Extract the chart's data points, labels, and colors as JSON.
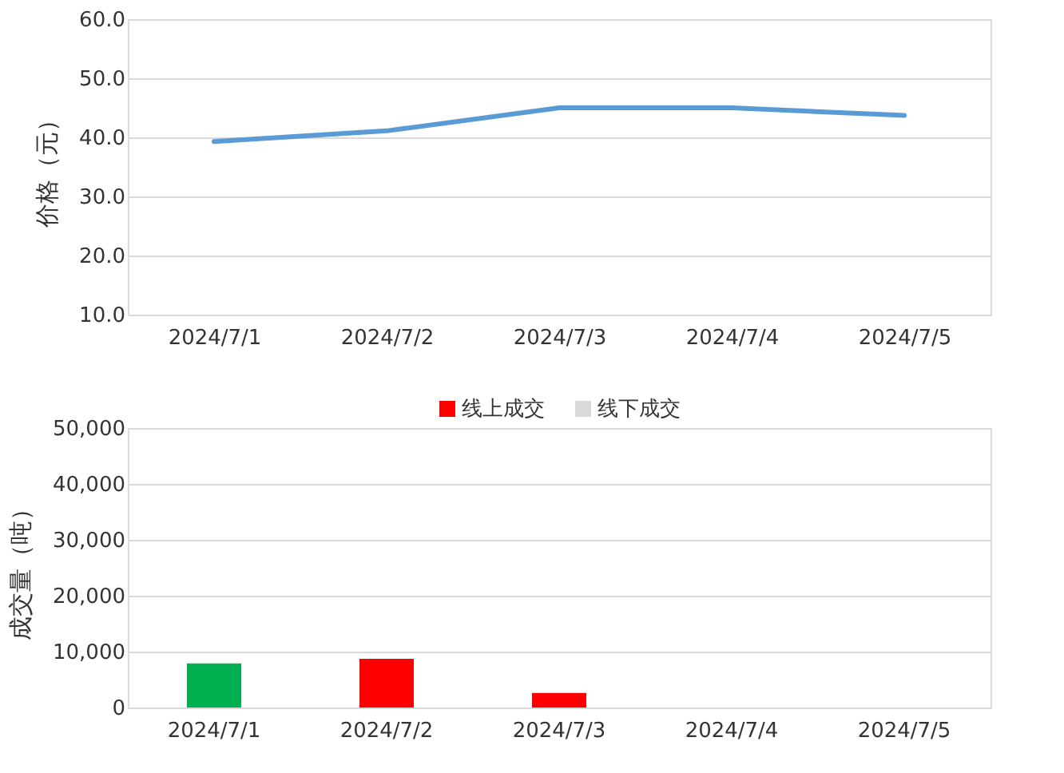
{
  "chart_data": [
    {
      "type": "line",
      "ylabel": "价格（元）",
      "categories": [
        "2024/7/1",
        "2024/7/2",
        "2024/7/3",
        "2024/7/4",
        "2024/7/5"
      ],
      "series": [
        {
          "color": "#5b9bd5",
          "values": [
            39.3,
            41.1,
            45.0,
            45.0,
            43.7
          ]
        }
      ],
      "ylim": [
        10,
        60
      ],
      "yticks": [
        {
          "value": 10,
          "label": "10.0"
        },
        {
          "value": 20,
          "label": "20.0"
        },
        {
          "value": 30,
          "label": "30.0"
        },
        {
          "value": 40,
          "label": "40.0"
        },
        {
          "value": 50,
          "label": "50.0"
        },
        {
          "value": 60,
          "label": "60.0"
        }
      ],
      "grid": "y",
      "legend": false,
      "marker": "none",
      "line_style": "solid"
    },
    {
      "type": "bar",
      "ylabel": "成交量（吨）",
      "categories": [
        "2024/7/1",
        "2024/7/2",
        "2024/7/3",
        "2024/7/4",
        "2024/7/5"
      ],
      "stacked": true,
      "series": [
        {
          "name": "线上成交",
          "color": "#ff0000",
          "colors": [
            "#00b050",
            "#ff0000",
            "#ff0000",
            "#ff0000",
            "#ff0000"
          ],
          "values": [
            7900,
            8700,
            2600,
            0,
            0
          ]
        },
        {
          "name": "线下成交",
          "color": "#d9d9d9",
          "values": [
            0,
            0,
            0,
            0,
            0
          ]
        }
      ],
      "ylim": [
        0,
        50000
      ],
      "yticks": [
        0,
        {
          "value": 10000,
          "label": "10,000"
        },
        {
          "value": 20000,
          "label": "20,000"
        },
        {
          "value": 30000,
          "label": "30,000"
        },
        {
          "value": 40000,
          "label": "40,000"
        },
        {
          "value": 50000,
          "label": "50,000"
        }
      ],
      "grid": "y",
      "legend": "top"
    }
  ]
}
